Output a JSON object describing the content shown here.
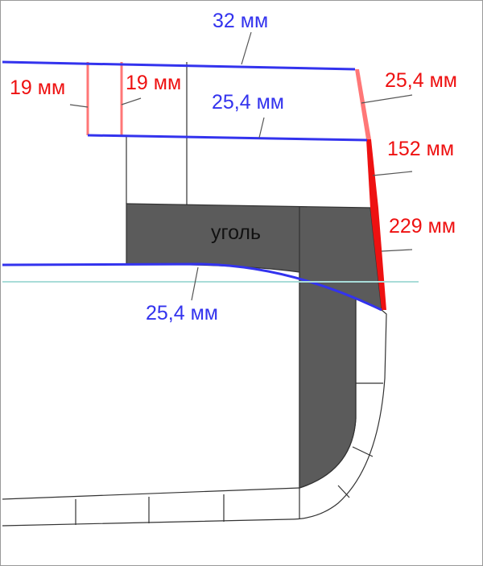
{
  "colors": {
    "blue": "#3333ee",
    "red": "#ee1111",
    "pink": "#ff7777",
    "dark_fill": "#5b5b5b",
    "waterline": "#a8dcd8",
    "outline": "#333333"
  },
  "labels": {
    "top_width": "32 мм",
    "left_19": "19 мм",
    "mid_19": "19 мм",
    "deck_25": "25,4 мм",
    "side_25": "25,4 мм",
    "side_152": "152 мм",
    "side_229": "229 мм",
    "bottom_25": "25,4 мм",
    "coal": "уголь"
  }
}
